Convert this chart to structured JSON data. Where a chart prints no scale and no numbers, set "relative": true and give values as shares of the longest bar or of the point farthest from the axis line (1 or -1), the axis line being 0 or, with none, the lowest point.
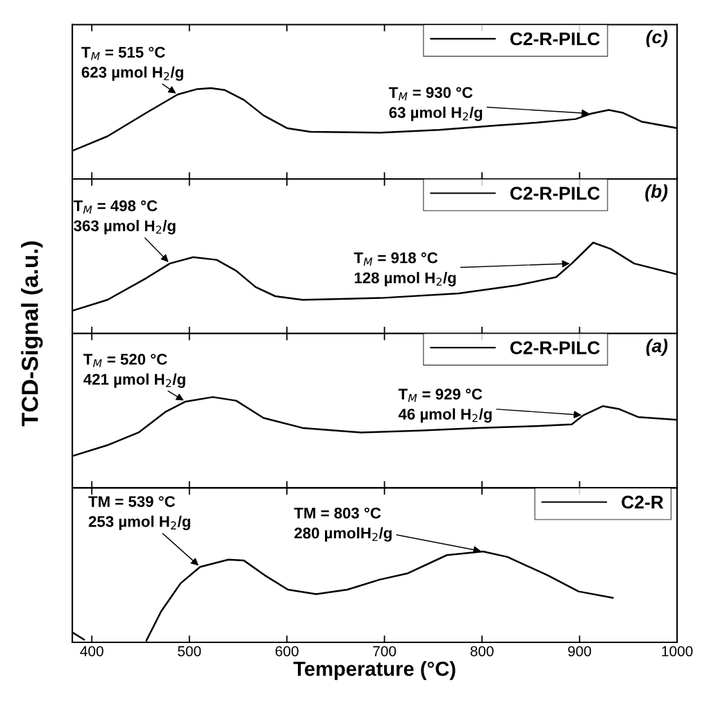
{
  "chart_data": [
    {
      "type": "line",
      "relative": true,
      "xlim": [
        380,
        1000
      ],
      "xticks": [
        400,
        500,
        600,
        700,
        800,
        900,
        1000
      ],
      "tick_labels": false,
      "legend": "top right",
      "grid": false,
      "marker": "none",
      "line_style": "solid",
      "title": "(c)",
      "series": [
        {
          "name": "C2-R-PILC",
          "color": "#000000",
          "x": [
            380,
            416,
            456,
            488,
            508,
            522,
            536,
            556,
            576,
            600,
            624,
            696,
            756,
            816,
            856,
            896,
            912,
            930,
            944,
            964,
            1000
          ],
          "values": [
            0.31,
            0.47,
            0.73,
            0.93,
            0.99,
            1.0,
            0.98,
            0.87,
            0.7,
            0.56,
            0.52,
            0.51,
            0.54,
            0.59,
            0.62,
            0.66,
            0.72,
            0.76,
            0.73,
            0.63,
            0.56
          ]
        }
      ],
      "annotations": [
        {
          "text": "T$_{M}$ = 515 °C\n623 µmol H$_{2}$/g",
          "x": 488,
          "y": 0.93
        },
        {
          "text": "T$_{M}$ = 930 °C\n63 µmol H$_{2}$/g",
          "x": 912,
          "y": 0.72
        }
      ]
    },
    {
      "type": "line",
      "relative": true,
      "xlim": [
        380,
        1000
      ],
      "xticks": [
        400,
        500,
        600,
        700,
        800,
        900,
        1000
      ],
      "tick_labels": false,
      "legend": "top right",
      "grid": false,
      "marker": "none",
      "line_style": "solid",
      "title": "(b)",
      "ylabel": "TCD-Signal (a.u.)",
      "series": [
        {
          "name": "C2-R-PILC",
          "color": "#000000",
          "x": [
            380,
            416,
            456,
            480,
            504,
            528,
            548,
            568,
            588,
            616,
            696,
            776,
            836,
            876,
            892,
            914,
            932,
            956,
            1000
          ],
          "values": [
            0.25,
            0.37,
            0.61,
            0.77,
            0.84,
            0.81,
            0.69,
            0.51,
            0.41,
            0.37,
            0.39,
            0.44,
            0.53,
            0.62,
            0.77,
            1.0,
            0.93,
            0.77,
            0.65
          ]
        }
      ],
      "annotations": [
        {
          "text": "T$_{M}$ = 498 °C\n363 µmol H$_{2}$/g",
          "x": 480,
          "y": 0.77
        },
        {
          "text": "T$_{M}$ = 918 °C\n128 µmol H$_{2}$/g",
          "x": 892,
          "y": 0.77
        }
      ]
    },
    {
      "type": "line",
      "relative": true,
      "xlim": [
        380,
        1000
      ],
      "xticks": [
        400,
        500,
        600,
        700,
        800,
        900,
        1000
      ],
      "tick_labels": false,
      "legend": "top right",
      "grid": false,
      "marker": "none",
      "line_style": "solid",
      "title": "(a)",
      "series": [
        {
          "name": "C2-R-PILC",
          "color": "#000000",
          "x": [
            380,
            416,
            448,
            476,
            496,
            524,
            548,
            576,
            616,
            676,
            736,
            796,
            856,
            892,
            904,
            924,
            940,
            960,
            1000
          ],
          "values": [
            0.35,
            0.47,
            0.61,
            0.84,
            0.95,
            1.0,
            0.96,
            0.77,
            0.66,
            0.61,
            0.63,
            0.66,
            0.68,
            0.7,
            0.8,
            0.9,
            0.87,
            0.78,
            0.75
          ]
        }
      ],
      "annotations": [
        {
          "text": "T$_{M}$ = 520 °C\n421 µmol H$_{2}$/g",
          "x": 496,
          "y": 0.95
        },
        {
          "text": "T$_{M}$ = 929 °C\n46 µmol H$_{2}$/g",
          "x": 904,
          "y": 0.8
        }
      ]
    },
    {
      "type": "line",
      "relative": true,
      "xlim": [
        380,
        1000
      ],
      "xticks": [
        400,
        500,
        600,
        700,
        800,
        900,
        1000
      ],
      "tick_labels": "x",
      "legend": "top right",
      "grid": false,
      "marker": "none",
      "line_style": "solid",
      "xlabel": "Temperature (°C)",
      "series": [
        {
          "name": "C2-R",
          "color": "#000000",
          "x": [
            380,
            392,
            425,
            456,
            471,
            491,
            511,
            540,
            556,
            577,
            601,
            630,
            662,
            695,
            724,
            764,
            801,
            826,
            867,
            899,
            934
          ],
          "values": [
            0.11,
            0.03,
            null,
            0.02,
            0.34,
            0.65,
            0.83,
            0.91,
            0.9,
            0.74,
            0.58,
            0.53,
            0.58,
            0.69,
            0.76,
            0.96,
            1.0,
            0.94,
            0.74,
            0.56,
            0.49
          ]
        }
      ],
      "annotations": [
        {
          "text": "TM = 539 °C\n253 µmol H$_{2}$/g",
          "x": 511,
          "y": 0.83
        },
        {
          "text": "TM = 803 °C\n280 µmolH$_{2}$/g",
          "x": 801,
          "y": 1.0
        }
      ]
    }
  ]
}
